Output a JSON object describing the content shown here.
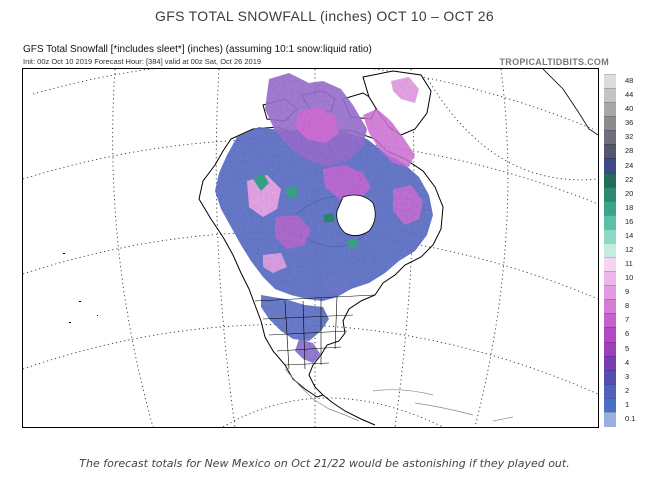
{
  "page": {
    "title": "GFS TOTAL SNOWFALL (inches) OCT 10 – OCT 26",
    "caption": "The forecast totals for New Mexico on Oct 21/22 would be astonishing if they played out."
  },
  "map": {
    "header_line1": "GFS Total Snowfall [*includes sleet*] (inches) (assuming 10:1 snow:liquid ratio)",
    "header_line2": "Init: 00z Oct 10 2019   Forecast Hour: [384]   valid at 00z Sat, Oct 26 2019",
    "credit": "TROPICALTIDBITS.COM",
    "colors": {
      "snow_blue": "#5a6fc8",
      "snow_purple": "#9a6fd0",
      "snow_magenta": "#d070d8",
      "snow_pink": "#e8a6e8",
      "snow_teal": "#3aa58a"
    }
  },
  "colorbar": {
    "labels": [
      "48",
      "44",
      "40",
      "36",
      "32",
      "28",
      "24",
      "22",
      "20",
      "18",
      "16",
      "14",
      "12",
      "11",
      "10",
      "9",
      "8",
      "7",
      "6",
      "5",
      "4",
      "3",
      "2",
      "1",
      "0.1"
    ],
    "colors": [
      "#dcdcdc",
      "#c4c4c4",
      "#a8a8a8",
      "#8c8c8c",
      "#6e6e7e",
      "#55556e",
      "#3c4a88",
      "#246c5a",
      "#2e8a6e",
      "#3aa58a",
      "#5cc0a4",
      "#8ed8c4",
      "#c6ecdf",
      "#f4d4f0",
      "#ecb8ec",
      "#e29ce4",
      "#d47ed8",
      "#c660cc",
      "#b448c4",
      "#9c40b8",
      "#7a3cb0",
      "#5a4ab4",
      "#5060bc",
      "#4a6fc4",
      "#9aaee0"
    ]
  }
}
